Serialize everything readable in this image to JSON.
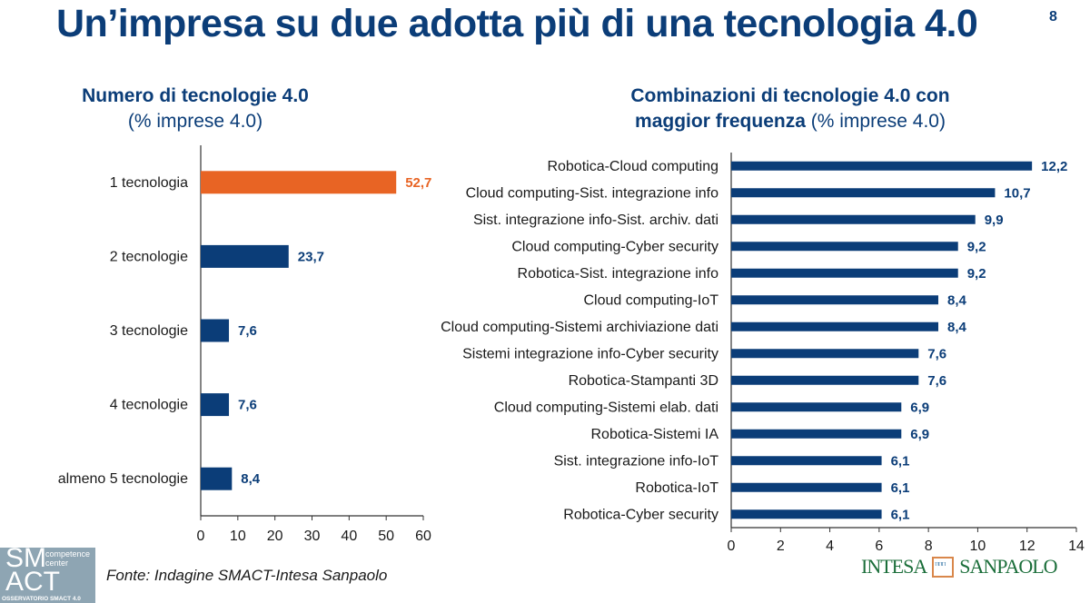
{
  "header": {
    "title": "Un’impresa su due adotta più di una tecnologia 4.0",
    "page_number": "8"
  },
  "left_panel": {
    "title_bold": "Numero di tecnologie 4.0",
    "title_normal": "(% imprese 4.0)"
  },
  "right_panel": {
    "title_bold_line1": "Combinazioni di tecnologie 4.0 con",
    "title_bold_line2": "maggior frequenza",
    "title_normal": "(% imprese 4.0)"
  },
  "footer": {
    "source": "Fonte: Indagine SMACT-Intesa Sanpaolo",
    "smact_logo": {
      "line1": "SM",
      "line2": "ACT",
      "tag1": "competence",
      "tag2": "center",
      "caption": "OSSERVATORIO SMACT 4.0"
    },
    "bank_logo": {
      "left": "INTESA",
      "right": "SANPAOLO"
    }
  },
  "colors": {
    "navy": "#0b3d78",
    "orange": "#e86424",
    "text": "#1a1a1a"
  },
  "chart_data": [
    {
      "type": "bar",
      "orientation": "horizontal",
      "title": "Numero di tecnologie 4.0 (% imprese 4.0)",
      "categories": [
        "1 tecnologia",
        "2 tecnologie",
        "3 tecnologie",
        "4 tecnologie",
        "almeno 5 tecnologie"
      ],
      "values": [
        52.7,
        23.7,
        7.6,
        7.6,
        8.4
      ],
      "labels": [
        "52,7",
        "23,7",
        "7,6",
        "7,6",
        "8,4"
      ],
      "highlight_index": 0,
      "xlim": [
        0,
        60
      ],
      "xticks": [
        0,
        10,
        20,
        30,
        40,
        50,
        60
      ],
      "xlabel": "",
      "ylabel": "",
      "grid": false
    },
    {
      "type": "bar",
      "orientation": "horizontal",
      "title": "Combinazioni di tecnologie 4.0 con maggior frequenza (% imprese 4.0)",
      "categories": [
        "Robotica-Cloud computing",
        "Cloud computing-Sist. integrazione info",
        "Sist. integrazione info-Sist. archiv. dati",
        "Cloud computing-Cyber security",
        "Robotica-Sist. integrazione info",
        "Cloud computing-IoT",
        "Cloud computing-Sistemi archiviazione dati",
        "Sistemi integrazione info-Cyber security",
        "Robotica-Stampanti 3D",
        "Cloud computing-Sistemi elab. dati",
        "Robotica-Sistemi IA",
        "Sist. integrazione info-IoT",
        "Robotica-IoT",
        "Robotica-Cyber security"
      ],
      "values": [
        12.2,
        10.7,
        9.9,
        9.2,
        9.2,
        8.4,
        8.4,
        7.6,
        7.6,
        6.9,
        6.9,
        6.1,
        6.1,
        6.1
      ],
      "labels": [
        "12,2",
        "10,7",
        "9,9",
        "9,2",
        "9,2",
        "8,4",
        "8,4",
        "7,6",
        "7,6",
        "6,9",
        "6,9",
        "6,1",
        "6,1",
        "6,1"
      ],
      "xlim": [
        0,
        14
      ],
      "xticks": [
        0,
        2,
        4,
        6,
        8,
        10,
        12,
        14
      ],
      "xlabel": "",
      "ylabel": "",
      "grid": false
    }
  ]
}
